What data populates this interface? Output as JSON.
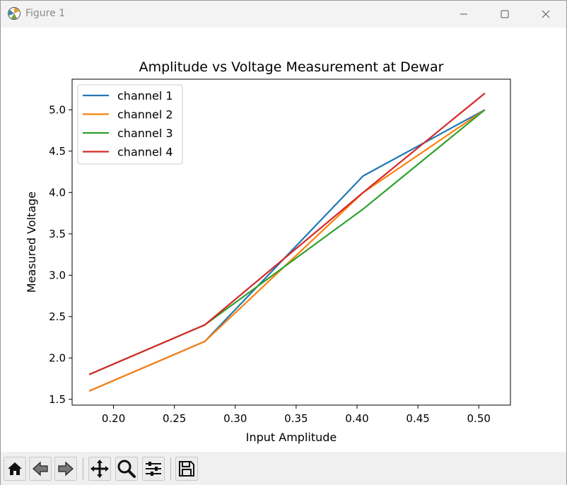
{
  "window": {
    "title": "Figure 1",
    "icons": [
      "figure-app-icon",
      "minimize-icon",
      "maximize-icon",
      "close-icon"
    ]
  },
  "toolbar": {
    "buttons": [
      "home-icon",
      "back-arrow-icon",
      "forward-arrow-icon",
      "pan-icon",
      "zoom-icon",
      "configure-subplots-icon",
      "save-icon"
    ]
  },
  "chart_data": {
    "type": "line",
    "title": "Amplitude vs Voltage Measurement at Dewar",
    "xlabel": "Input Amplitude",
    "ylabel": "Measured Voltage",
    "xlim": [
      0.166,
      0.526
    ],
    "ylim": [
      1.43,
      5.37
    ],
    "xticks": [
      0.2,
      0.25,
      0.3,
      0.35,
      0.4,
      0.45,
      0.5
    ],
    "xtick_labels": [
      "0.20",
      "0.25",
      "0.30",
      "0.35",
      "0.40",
      "0.45",
      "0.50"
    ],
    "yticks": [
      1.5,
      2.0,
      2.5,
      3.0,
      3.5,
      4.0,
      4.5,
      5.0
    ],
    "ytick_labels": [
      "1.5",
      "2.0",
      "2.5",
      "3.0",
      "3.5",
      "4.0",
      "4.5",
      "5.0"
    ],
    "grid": false,
    "legend_position": "upper-left",
    "x": [
      0.18,
      0.275,
      0.405,
      0.505
    ],
    "series": [
      {
        "name": "channel 1",
        "color": "#1f77b4",
        "values": [
          1.6,
          2.2,
          4.2,
          5.0
        ]
      },
      {
        "name": "channel 2",
        "color": "#ff7f0e",
        "values": [
          1.6,
          2.2,
          4.0,
          5.0
        ]
      },
      {
        "name": "channel 3",
        "color": "#2ca02c",
        "values": [
          1.8,
          2.4,
          3.8,
          5.0
        ]
      },
      {
        "name": "channel 4",
        "color": "#d62728",
        "values": [
          1.8,
          2.4,
          4.0,
          5.2
        ]
      }
    ]
  }
}
